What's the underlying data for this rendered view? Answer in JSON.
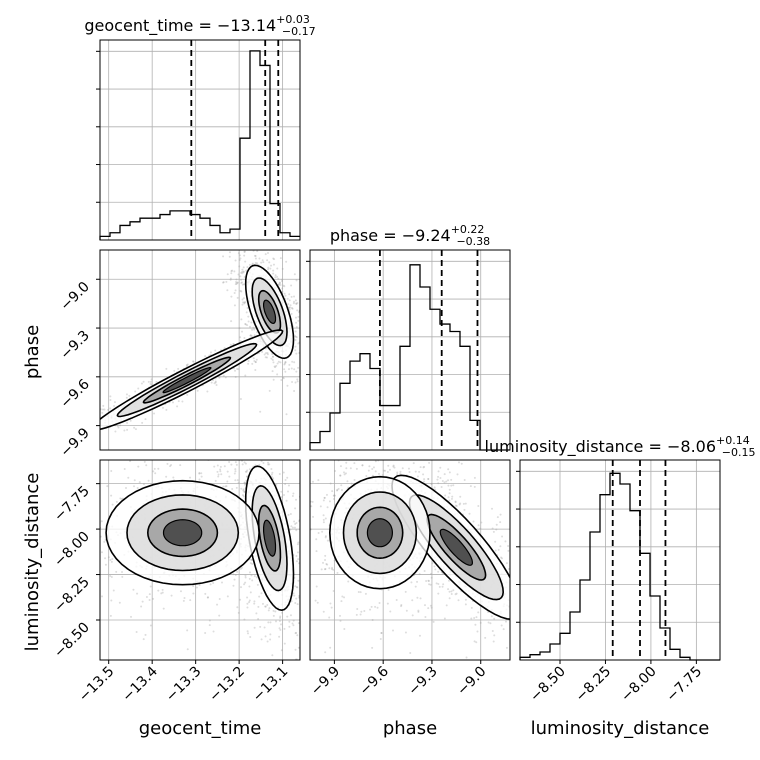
{
  "chart_data": {
    "type": "corner",
    "colors": {
      "line": "#000000",
      "grid": "#b0b0b0",
      "scatter": "#9e9e9e"
    },
    "parameters": [
      {
        "key": "geocent_time",
        "label": "geocent_time",
        "range": [
          -13.52,
          -13.06
        ],
        "ticks": [
          -13.5,
          -13.4,
          -13.3,
          -13.2,
          -13.1
        ],
        "tick_labels": [
          "−13.5",
          "−13.4",
          "−13.3",
          "−13.2",
          "−13.1"
        ],
        "quantiles": [
          -13.31,
          -13.14,
          -13.11
        ]
      },
      {
        "key": "phase",
        "label": "phase",
        "range": [
          -10.05,
          -8.82
        ],
        "ticks": [
          -9.9,
          -9.6,
          -9.3,
          -9.0
        ],
        "tick_labels": [
          "−9.9",
          "−9.6",
          "−9.3",
          "−9.0"
        ],
        "quantiles": [
          -9.62,
          -9.24,
          -9.02
        ]
      },
      {
        "key": "luminosity_distance",
        "label": "luminosity_distance",
        "range": [
          -8.72,
          -7.62
        ],
        "ticks": [
          -8.5,
          -8.25,
          -8.0,
          -7.75
        ],
        "tick_labels": [
          "−8.50",
          "−8.25",
          "−8.00",
          "−7.75"
        ],
        "quantiles": [
          -8.21,
          -8.06,
          -7.92
        ]
      }
    ],
    "titles": [
      {
        "prefix": "geocent_time = −13.14",
        "sup": "+0.03",
        "sub": "−0.17"
      },
      {
        "prefix": "phase = −9.24",
        "sup": "+0.22",
        "sub": "−0.38"
      },
      {
        "prefix": "luminosity_distance = −8.06",
        "sup": "+0.14",
        "sub": "−0.15"
      }
    ],
    "histograms": [
      {
        "param": "geocent_time",
        "bins": 20,
        "counts": [
          1,
          2,
          4,
          5,
          6,
          6,
          7,
          8,
          8,
          7,
          6,
          4,
          2,
          3,
          28,
          52,
          48,
          10,
          2,
          1
        ],
        "ymax": 55
      },
      {
        "param": "phase",
        "bins": 20,
        "counts": [
          2,
          5,
          10,
          18,
          24,
          26,
          22,
          12,
          12,
          28,
          50,
          44,
          38,
          34,
          32,
          28,
          8,
          0,
          0,
          0
        ],
        "ymax": 54
      },
      {
        "param": "luminosity_distance",
        "bins": 20,
        "counts": [
          1,
          2,
          3,
          6,
          10,
          18,
          30,
          48,
          62,
          70,
          66,
          56,
          40,
          24,
          12,
          4,
          1,
          0,
          0,
          0
        ],
        "ymax": 75
      }
    ],
    "pairs": [
      {
        "x": "geocent_time",
        "y": "phase"
      },
      {
        "x": "geocent_time",
        "y": "luminosity_distance"
      },
      {
        "x": "phase",
        "y": "luminosity_distance"
      }
    ],
    "modes": [
      {
        "x": "geocent_time",
        "y": "phase",
        "cx": -13.13,
        "cy": -9.2,
        "sx": 0.025,
        "sy": 0.13,
        "rho": -0.6,
        "w": 0.5
      },
      {
        "x": "geocent_time",
        "y": "phase",
        "cx": -13.32,
        "cy": -9.62,
        "sx": 0.1,
        "sy": 0.14,
        "rho": 0.97,
        "w": 0.5
      },
      {
        "x": "geocent_time",
        "y": "luminosity_distance",
        "cx": -13.13,
        "cy": -8.05,
        "sx": 0.025,
        "sy": 0.18,
        "rho": -0.5,
        "w": 0.5
      },
      {
        "x": "geocent_time",
        "y": "luminosity_distance",
        "cx": -13.33,
        "cy": -8.02,
        "sx": 0.08,
        "sy": 0.13,
        "rho": 0.0,
        "w": 0.5
      },
      {
        "x": "phase",
        "y": "luminosity_distance",
        "cx": -9.15,
        "cy": -8.1,
        "sx": 0.18,
        "sy": 0.18,
        "rho": -0.85,
        "w": 0.5
      },
      {
        "x": "phase",
        "y": "luminosity_distance",
        "cx": -9.62,
        "cy": -8.02,
        "sx": 0.14,
        "sy": 0.14,
        "rho": 0.0,
        "w": 0.5
      }
    ]
  }
}
